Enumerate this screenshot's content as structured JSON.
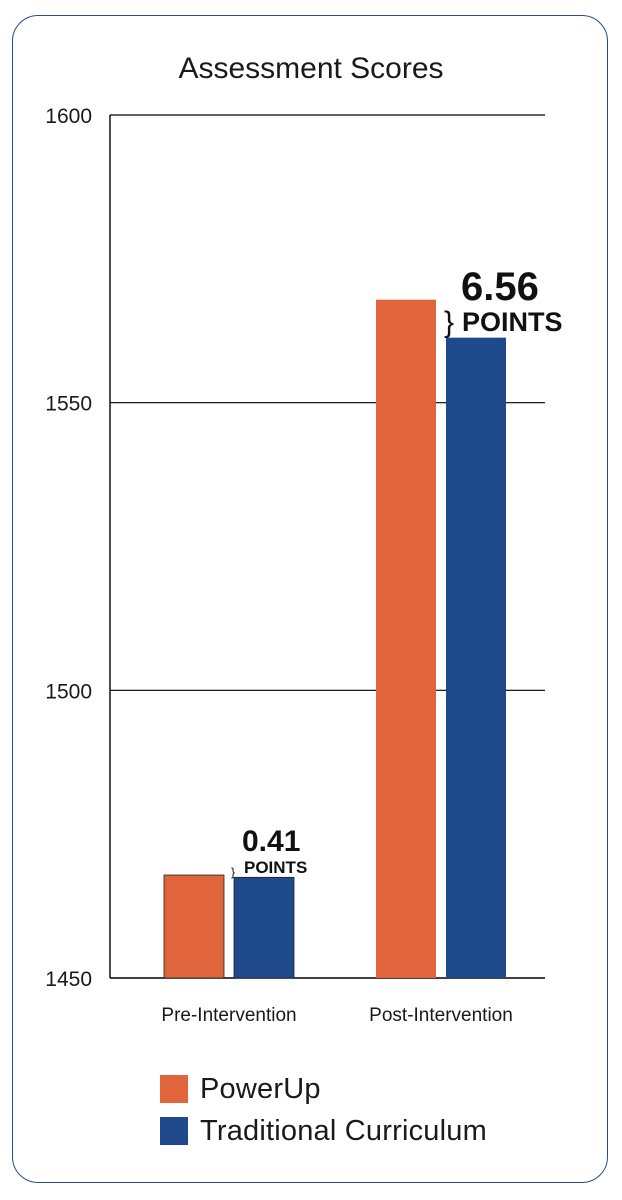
{
  "chart_data": {
    "type": "bar",
    "title": "Assessment Scores",
    "xlabel": "",
    "ylabel": "",
    "ylim": [
      1450,
      1600
    ],
    "yticks": [
      1450,
      1500,
      1550,
      1600
    ],
    "grid": true,
    "legend_position": "bottom",
    "categories": [
      "Pre-Intervention",
      "Post-Intervention"
    ],
    "series": [
      {
        "name": "PowerUp",
        "color": "#e0653c",
        "values": [
          1467.9,
          1567.9
        ]
      },
      {
        "name": "Traditional Curriculum",
        "color": "#1e4a8c",
        "values": [
          1467.5,
          1561.3
        ]
      }
    ],
    "annotations": [
      {
        "category": "Pre-Intervention",
        "value": "0.41",
        "unit": "POINTS",
        "bracket": "}"
      },
      {
        "category": "Post-Intervention",
        "value": "6.56",
        "unit": "POINTS",
        "bracket": "}"
      }
    ]
  }
}
